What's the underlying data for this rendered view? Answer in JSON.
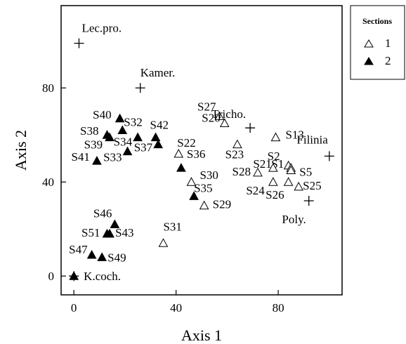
{
  "chart_data": {
    "type": "scatter",
    "xlabel": "Axis 1",
    "ylabel": "Axis 2",
    "xlim": [
      -5,
      105
    ],
    "ylim": [
      -8,
      115
    ],
    "xticks": [
      0,
      40,
      80
    ],
    "yticks": [
      0,
      40,
      80
    ],
    "legend": {
      "title": "Sections",
      "placement": "top-right-outside",
      "entries": [
        {
          "label": "1",
          "marker": "open-triangle"
        },
        {
          "label": "2",
          "marker": "filled-triangle"
        }
      ]
    },
    "series": [
      {
        "name": "1",
        "marker": "open-triangle",
        "points": [
          {
            "label": "S27",
            "x": 57,
            "y": 68
          },
          {
            "label": "S20",
            "x": 59,
            "y": 65
          },
          {
            "label": "S13",
            "x": 79,
            "y": 59
          },
          {
            "label": "S23",
            "x": 64,
            "y": 56
          },
          {
            "label": "S2",
            "x": 84,
            "y": 47
          },
          {
            "label": "S1",
            "x": 85,
            "y": 46
          },
          {
            "label": "S5",
            "x": 85,
            "y": 45
          },
          {
            "label": "S21",
            "x": 78,
            "y": 46
          },
          {
            "label": "S22",
            "x": 41,
            "y": 52
          },
          {
            "label": "S28",
            "x": 72,
            "y": 44
          },
          {
            "label": "S24",
            "x": 78,
            "y": 40
          },
          {
            "label": "S26",
            "x": 84,
            "y": 40
          },
          {
            "label": "S25",
            "x": 88,
            "y": 38
          },
          {
            "label": "S30",
            "x": 46,
            "y": 40
          },
          {
            "label": "S29",
            "x": 51,
            "y": 30
          },
          {
            "label": "S31",
            "x": 35,
            "y": 14
          }
        ]
      },
      {
        "name": "2",
        "marker": "filled-triangle",
        "points": [
          {
            "label": "S40",
            "x": 18,
            "y": 67
          },
          {
            "label": "S32",
            "x": 19,
            "y": 62
          },
          {
            "label": "S38",
            "x": 13,
            "y": 60
          },
          {
            "label": "S39",
            "x": 14,
            "y": 59
          },
          {
            "label": "S34",
            "x": 25,
            "y": 59
          },
          {
            "label": "S42",
            "x": 32,
            "y": 59
          },
          {
            "label": "S33",
            "x": 21,
            "y": 53
          },
          {
            "label": "S37",
            "x": 33,
            "y": 56
          },
          {
            "label": "S41",
            "x": 9,
            "y": 49
          },
          {
            "label": "S36",
            "x": 42,
            "y": 46
          },
          {
            "label": "S35",
            "x": 47,
            "y": 34
          },
          {
            "label": "S46",
            "x": 16,
            "y": 22
          },
          {
            "label": "S51",
            "x": 13,
            "y": 18
          },
          {
            "label": "S43",
            "x": 14,
            "y": 18
          },
          {
            "label": "S47",
            "x": 7,
            "y": 9
          },
          {
            "label": "S49",
            "x": 11,
            "y": 8
          },
          {
            "label": "",
            "x": 0,
            "y": 0
          }
        ]
      }
    ],
    "species": [
      {
        "label": "Lec.pro.",
        "x": 2,
        "y": 99
      },
      {
        "label": "Kamer.",
        "x": 26,
        "y": 80
      },
      {
        "label": "Tricho.",
        "x": 69,
        "y": 63
      },
      {
        "label": "Filinia",
        "x": 100,
        "y": 51
      },
      {
        "label": "Poly.",
        "x": 92,
        "y": 32
      },
      {
        "label": "K.coch.",
        "x": 0,
        "y": 0
      }
    ]
  }
}
